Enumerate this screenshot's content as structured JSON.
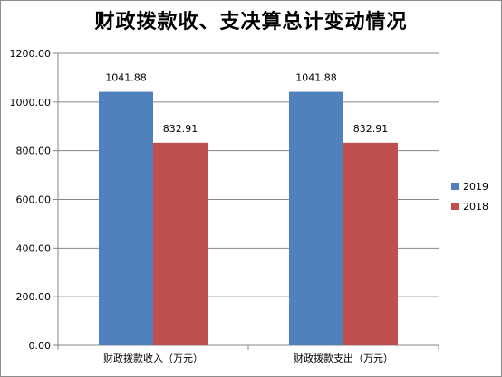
{
  "chart_data": {
    "type": "bar",
    "title": "财政拨款收、支决算总计变动情况",
    "categories": [
      "财政拨款收入（万元）",
      "财政拨款支出（万元）"
    ],
    "series": [
      {
        "name": "2019",
        "color": "#4f81bd",
        "values": [
          1041.88,
          1041.88
        ],
        "labels": [
          "1041.88",
          "1041.88"
        ]
      },
      {
        "name": "2018",
        "color": "#c0504d",
        "values": [
          832.91,
          832.91
        ],
        "labels": [
          "832.91",
          "832.91"
        ]
      }
    ],
    "ylim": [
      0,
      1200
    ],
    "yticks": [
      "0.00",
      "200.00",
      "400.00",
      "600.00",
      "800.00",
      "1000.00",
      "1200.00"
    ],
    "ytick_values": [
      0,
      200,
      400,
      600,
      800,
      1000,
      1200
    ],
    "grid": true,
    "legend_position": "right"
  }
}
